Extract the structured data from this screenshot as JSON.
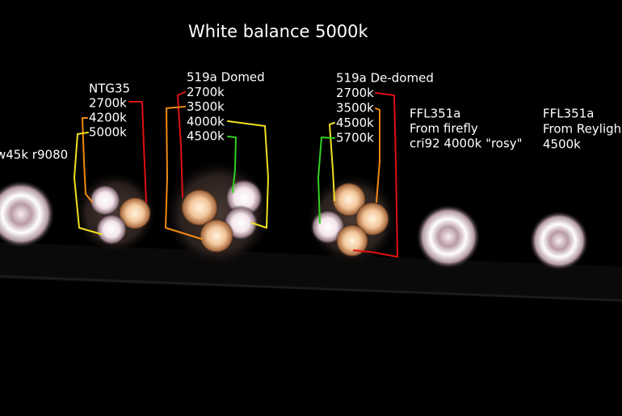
{
  "title": "White balance 5000k",
  "groups": [
    {
      "lines": [
        "w45k r9080"
      ]
    },
    {
      "lines": [
        "NTG35",
        "2700k",
        "4200k",
        "5000k"
      ]
    },
    {
      "lines": [
        "519a Domed",
        "2700k",
        "3500k",
        "4000k",
        "4500k"
      ]
    },
    {
      "lines": [
        "519a De-domed",
        "2700k",
        "3500k",
        "4500k",
        "5700k"
      ]
    },
    {
      "lines": [
        "FFL351a",
        "From firefly",
        "cri92 4000k \"rosy\""
      ]
    },
    {
      "lines": [
        "FFL351a",
        "From Reyligh",
        "4500k"
      ]
    }
  ]
}
